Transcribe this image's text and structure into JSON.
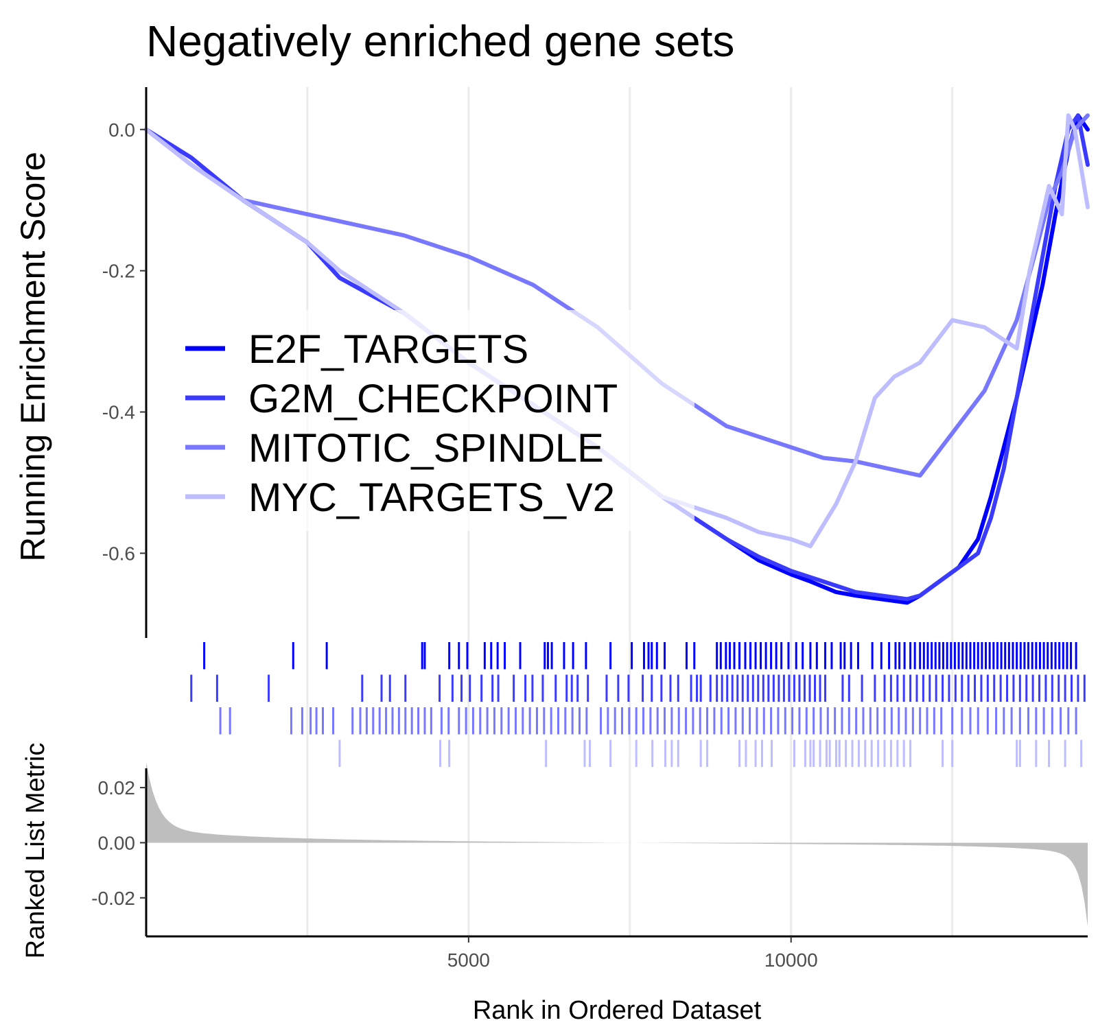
{
  "chart_data": {
    "type": "line",
    "title": "Negatively enriched gene sets",
    "ylabel": "Running Enrichment Score",
    "ylabel_bottom": "Ranked List Metric",
    "xlabel": "Rank in Ordered Dataset",
    "xlim": [
      0,
      14600
    ],
    "ylim": [
      -0.72,
      0.06
    ],
    "metric_ylim": [
      -0.034,
      0.027
    ],
    "x_ticks": [
      5000,
      10000
    ],
    "x_tick_labels": [
      "5000",
      "10000"
    ],
    "x_minor_grid": [
      2500,
      7500,
      12500
    ],
    "y_ticks": [
      0.0,
      -0.2,
      -0.4,
      -0.6
    ],
    "y_tick_labels": [
      "0.0",
      "-0.2",
      "-0.4",
      "-0.6"
    ],
    "metric_ticks": [
      0.02,
      0.0,
      -0.02
    ],
    "metric_tick_labels": [
      "0.02",
      "0.00",
      "-0.02"
    ],
    "legend_position": "middle-left",
    "grid": "vertical only",
    "series": [
      {
        "name": "E2F_TARGETS",
        "color": "#0000ff",
        "x": [
          0,
          700,
          1500,
          2500,
          3000,
          4000,
          5000,
          6000,
          7000,
          8000,
          9000,
          9500,
          10000,
          10300,
          10700,
          11000,
          11400,
          11800,
          12000,
          12300,
          12600,
          12900,
          13100,
          13300,
          13500,
          13700,
          13900,
          14100,
          14300,
          14450,
          14600
        ],
        "values": [
          0.0,
          -0.04,
          -0.1,
          -0.16,
          -0.21,
          -0.26,
          -0.33,
          -0.39,
          -0.45,
          -0.52,
          -0.58,
          -0.61,
          -0.63,
          -0.64,
          -0.655,
          -0.66,
          -0.665,
          -0.67,
          -0.66,
          -0.64,
          -0.62,
          -0.58,
          -0.52,
          -0.45,
          -0.38,
          -0.3,
          -0.22,
          -0.12,
          -0.03,
          0.02,
          0.0
        ]
      },
      {
        "name": "G2M_CHECKPOINT",
        "color": "#3b3bff",
        "x": [
          0,
          700,
          1500,
          2500,
          3000,
          4000,
          5000,
          6000,
          7000,
          8000,
          9000,
          9500,
          10000,
          10500,
          11000,
          11400,
          11800,
          12000,
          12300,
          12600,
          12900,
          13100,
          13300,
          13500,
          13700,
          13900,
          14100,
          14300,
          14450,
          14600
        ],
        "values": [
          0.0,
          -0.04,
          -0.1,
          -0.16,
          -0.21,
          -0.26,
          -0.33,
          -0.39,
          -0.45,
          -0.52,
          -0.58,
          -0.605,
          -0.625,
          -0.64,
          -0.655,
          -0.66,
          -0.665,
          -0.66,
          -0.64,
          -0.62,
          -0.6,
          -0.55,
          -0.48,
          -0.38,
          -0.28,
          -0.18,
          -0.08,
          0.0,
          0.02,
          -0.05
        ]
      },
      {
        "name": "MITOTIC_SPINDLE",
        "color": "#7777ff",
        "x": [
          0,
          700,
          1500,
          2500,
          3000,
          4000,
          5000,
          6000,
          7000,
          8000,
          9000,
          10000,
          10500,
          11000,
          11500,
          12000,
          12500,
          13000,
          13500,
          13800,
          14000,
          14200,
          14400,
          14600
        ],
        "values": [
          0.0,
          -0.05,
          -0.1,
          -0.12,
          -0.13,
          -0.15,
          -0.18,
          -0.22,
          -0.28,
          -0.36,
          -0.42,
          -0.45,
          -0.465,
          -0.47,
          -0.48,
          -0.49,
          -0.43,
          -0.37,
          -0.27,
          -0.17,
          -0.1,
          -0.06,
          0.0,
          0.02
        ]
      },
      {
        "name": "MYC_TARGETS_V2",
        "color": "#bdbdff",
        "x": [
          0,
          700,
          1500,
          2500,
          3000,
          4000,
          5000,
          6000,
          7000,
          8000,
          9000,
          9500,
          10000,
          10300,
          10700,
          11000,
          11300,
          11600,
          12000,
          12500,
          13000,
          13500,
          13700,
          14000,
          14200,
          14300,
          14400,
          14600
        ],
        "values": [
          0.0,
          -0.05,
          -0.1,
          -0.16,
          -0.2,
          -0.26,
          -0.33,
          -0.39,
          -0.45,
          -0.52,
          -0.55,
          -0.57,
          -0.58,
          -0.59,
          -0.53,
          -0.47,
          -0.38,
          -0.35,
          -0.33,
          -0.27,
          -0.28,
          -0.31,
          -0.2,
          -0.08,
          -0.12,
          0.02,
          0.0,
          -0.11
        ]
      }
    ],
    "hits": [
      {
        "name": "E2F_TARGETS",
        "x": [
          900,
          2280,
          2800,
          4280,
          4320,
          4700,
          4850,
          4980,
          5250,
          5350,
          5450,
          5560,
          5800,
          6180,
          6230,
          6290,
          6480,
          6620,
          6820,
          7200,
          7530,
          7720,
          7790,
          7840,
          7920,
          8040,
          8380,
          8500,
          8850,
          8910,
          8990,
          9050,
          9120,
          9200,
          9290,
          9370,
          9450,
          9530,
          9610,
          9690,
          9770,
          9850,
          9960,
          10080,
          10180,
          10300,
          10400,
          10530,
          10630,
          10770,
          10830,
          10930,
          11040,
          11260,
          11400,
          11520,
          11620,
          11680,
          11760,
          11850,
          11920,
          12000,
          12060,
          12120,
          12180,
          12240,
          12300,
          12360,
          12420,
          12480,
          12540,
          12600,
          12660,
          12720,
          12780,
          12840,
          12900,
          12960,
          13020,
          13080,
          13140,
          13200,
          13260,
          13320,
          13380,
          13440,
          13500,
          13560,
          13620,
          13680,
          13740,
          13800,
          13860,
          13920,
          13980,
          14040,
          14100,
          14160,
          14220,
          14280,
          14340,
          14420
        ]
      },
      {
        "name": "G2M_CHECKPOINT",
        "x": [
          700,
          1100,
          1900,
          3350,
          3650,
          3780,
          4020,
          4550,
          4750,
          4890,
          5020,
          5200,
          5370,
          5460,
          5700,
          5880,
          5990,
          6150,
          6350,
          6520,
          6600,
          6690,
          6850,
          7140,
          7320,
          7480,
          7700,
          7840,
          7990,
          8130,
          8250,
          8450,
          8540,
          8600,
          8750,
          8850,
          8930,
          9010,
          9090,
          9170,
          9250,
          9330,
          9410,
          9490,
          9570,
          9650,
          9730,
          9810,
          9890,
          9970,
          10050,
          10130,
          10210,
          10290,
          10370,
          10450,
          10530,
          10800,
          10900,
          11100,
          11300,
          11450,
          11550,
          11650,
          11750,
          11850,
          11950,
          12050,
          12150,
          12250,
          12350,
          12450,
          12550,
          12650,
          12750,
          12850,
          12950,
          13050,
          13150,
          13250,
          13350,
          13450,
          13550,
          13650,
          13750,
          13850,
          13950,
          14050,
          14150,
          14250,
          14350,
          14450,
          14550
        ]
      },
      {
        "name": "MITOTIC_SPINDLE",
        "x": [
          1150,
          1300,
          2250,
          2420,
          2550,
          2640,
          2740,
          2900,
          3200,
          3320,
          3420,
          3520,
          3620,
          3720,
          3820,
          3920,
          4020,
          4120,
          4220,
          4320,
          4420,
          4580,
          4690,
          4850,
          4960,
          5070,
          5180,
          5290,
          5400,
          5510,
          5620,
          5730,
          5840,
          5950,
          6060,
          6170,
          6280,
          6390,
          6500,
          6610,
          6720,
          6830,
          7050,
          7160,
          7270,
          7380,
          7490,
          7600,
          7710,
          7820,
          7930,
          8040,
          8150,
          8260,
          8370,
          8480,
          8590,
          8700,
          8810,
          8920,
          9030,
          9140,
          9250,
          9360,
          9470,
          9580,
          9690,
          9800,
          9910,
          10020,
          10130,
          10240,
          10350,
          10460,
          10570,
          10680,
          10790,
          10900,
          11010,
          11120,
          11230,
          11340,
          11450,
          11560,
          11670,
          11780,
          11890,
          12000,
          12110,
          12220,
          12330,
          12500,
          12650,
          12780,
          12900,
          13050,
          13180,
          13300,
          13420,
          13550,
          13680,
          13800,
          13920,
          14050,
          14180,
          14300,
          14420
        ]
      },
      {
        "name": "MYC_TARGETS_V2",
        "x": [
          3000,
          4560,
          4700,
          6200,
          6800,
          6880,
          7200,
          7600,
          7850,
          8050,
          8150,
          8250,
          8600,
          8700,
          9200,
          9300,
          9450,
          9550,
          9700,
          10050,
          10220,
          10300,
          10350,
          10450,
          10550,
          10600,
          10700,
          10750,
          10850,
          10950,
          11050,
          11150,
          11250,
          11350,
          11450,
          11550,
          11650,
          11750,
          11850,
          12350,
          12500,
          13500,
          13550,
          13800,
          14000,
          14250,
          14500
        ]
      }
    ]
  }
}
